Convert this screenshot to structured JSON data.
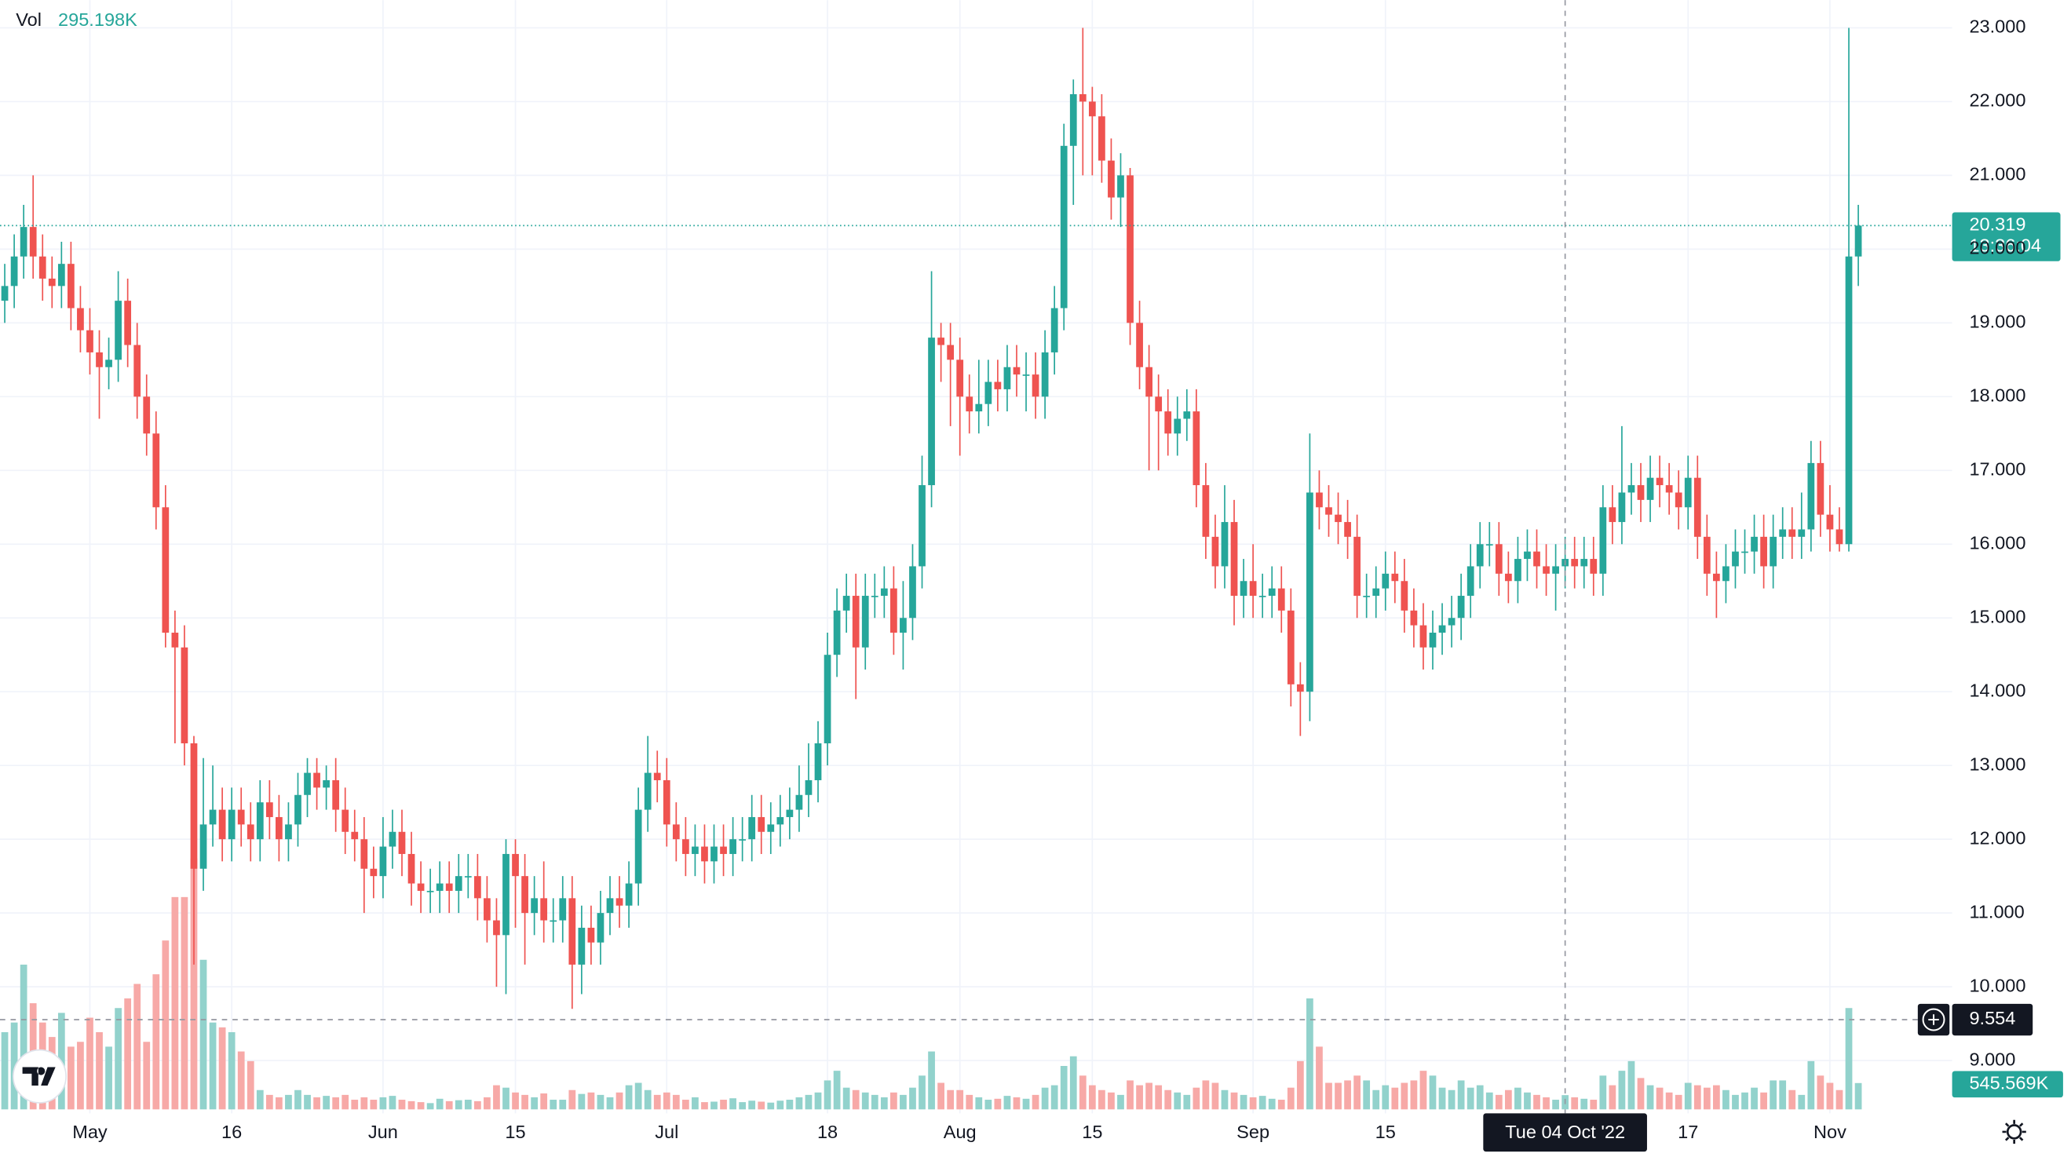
{
  "chart_data": {
    "type": "candlestick",
    "up_color": "#26a69a",
    "down_color": "#ef5350",
    "volume_up_color": "#92d2cc",
    "volume_down_color": "#f7a9a7",
    "grid": true,
    "volume_name": "Vol",
    "x": [
      "2022-04-22",
      "2022-04-23",
      "2022-04-24",
      "2022-04-25",
      "2022-04-26",
      "2022-04-27",
      "2022-04-28",
      "2022-04-29",
      "2022-04-30",
      "2022-05-01",
      "2022-05-02",
      "2022-05-03",
      "2022-05-04",
      "2022-05-05",
      "2022-05-06",
      "2022-05-07",
      "2022-05-08",
      "2022-05-09",
      "2022-05-10",
      "2022-05-11",
      "2022-05-12",
      "2022-05-13",
      "2022-05-14",
      "2022-05-15",
      "2022-05-16",
      "2022-05-17",
      "2022-05-18",
      "2022-05-19",
      "2022-05-20",
      "2022-05-21",
      "2022-05-22",
      "2022-05-23",
      "2022-05-24",
      "2022-05-25",
      "2022-05-26",
      "2022-05-27",
      "2022-05-28",
      "2022-05-29",
      "2022-05-30",
      "2022-05-31",
      "2022-06-01",
      "2022-06-02",
      "2022-06-03",
      "2022-06-04",
      "2022-06-05",
      "2022-06-06",
      "2022-06-07",
      "2022-06-08",
      "2022-06-09",
      "2022-06-10",
      "2022-06-11",
      "2022-06-12",
      "2022-06-13",
      "2022-06-14",
      "2022-06-15",
      "2022-06-16",
      "2022-06-17",
      "2022-06-18",
      "2022-06-19",
      "2022-06-20",
      "2022-06-21",
      "2022-06-22",
      "2022-06-23",
      "2022-06-24",
      "2022-06-25",
      "2022-06-26",
      "2022-06-27",
      "2022-06-28",
      "2022-06-29",
      "2022-06-30",
      "2022-07-01",
      "2022-07-02",
      "2022-07-03",
      "2022-07-04",
      "2022-07-05",
      "2022-07-06",
      "2022-07-07",
      "2022-07-08",
      "2022-07-09",
      "2022-07-10",
      "2022-07-11",
      "2022-07-12",
      "2022-07-13",
      "2022-07-14",
      "2022-07-15",
      "2022-07-16",
      "2022-07-17",
      "2022-07-18",
      "2022-07-19",
      "2022-07-20",
      "2022-07-21",
      "2022-07-22",
      "2022-07-23",
      "2022-07-24",
      "2022-07-25",
      "2022-07-26",
      "2022-07-27",
      "2022-07-28",
      "2022-07-29",
      "2022-07-30",
      "2022-07-31",
      "2022-08-01",
      "2022-08-02",
      "2022-08-03",
      "2022-08-04",
      "2022-08-05",
      "2022-08-06",
      "2022-08-07",
      "2022-08-08",
      "2022-08-09",
      "2022-08-10",
      "2022-08-11",
      "2022-08-12",
      "2022-08-13",
      "2022-08-14",
      "2022-08-15",
      "2022-08-16",
      "2022-08-17",
      "2022-08-18",
      "2022-08-19",
      "2022-08-20",
      "2022-08-21",
      "2022-08-22",
      "2022-08-23",
      "2022-08-24",
      "2022-08-25",
      "2022-08-26",
      "2022-08-27",
      "2022-08-28",
      "2022-08-29",
      "2022-08-30",
      "2022-08-31",
      "2022-09-01",
      "2022-09-02",
      "2022-09-03",
      "2022-09-04",
      "2022-09-05",
      "2022-09-06",
      "2022-09-07",
      "2022-09-08",
      "2022-09-09",
      "2022-09-10",
      "2022-09-11",
      "2022-09-12",
      "2022-09-13",
      "2022-09-14",
      "2022-09-15",
      "2022-09-16",
      "2022-09-17",
      "2022-09-18",
      "2022-09-19",
      "2022-09-20",
      "2022-09-21",
      "2022-09-22",
      "2022-09-23",
      "2022-09-24",
      "2022-09-25",
      "2022-09-26",
      "2022-09-27",
      "2022-09-28",
      "2022-09-29",
      "2022-09-30",
      "2022-10-01",
      "2022-10-02",
      "2022-10-03",
      "2022-10-04",
      "2022-10-05",
      "2022-10-06",
      "2022-10-07",
      "2022-10-08",
      "2022-10-09",
      "2022-10-10",
      "2022-10-11",
      "2022-10-12",
      "2022-10-13",
      "2022-10-14",
      "2022-10-15",
      "2022-10-16",
      "2022-10-17",
      "2022-10-18",
      "2022-10-19",
      "2022-10-20",
      "2022-10-21",
      "2022-10-22",
      "2022-10-23",
      "2022-10-24",
      "2022-10-25",
      "2022-10-26",
      "2022-10-27",
      "2022-10-28",
      "2022-10-29",
      "2022-10-30",
      "2022-10-31",
      "2022-11-01",
      "2022-11-02",
      "2022-11-03",
      "2022-11-04"
    ],
    "open": [
      19.3,
      19.5,
      19.9,
      20.3,
      19.9,
      19.6,
      19.5,
      19.8,
      19.2,
      18.9,
      18.6,
      18.4,
      18.5,
      19.3,
      18.7,
      18.0,
      17.5,
      16.5,
      14.8,
      14.6,
      13.3,
      11.6,
      12.2,
      12.4,
      12.0,
      12.4,
      12.2,
      12.0,
      12.5,
      12.3,
      12.0,
      12.2,
      12.6,
      12.9,
      12.7,
      12.8,
      12.4,
      12.1,
      12.0,
      11.6,
      11.5,
      11.9,
      12.1,
      11.8,
      11.4,
      11.3,
      11.3,
      11.4,
      11.3,
      11.5,
      11.5,
      11.2,
      10.9,
      10.7,
      11.8,
      11.5,
      11.0,
      11.2,
      10.9,
      10.9,
      11.2,
      10.3,
      10.8,
      10.6,
      11.0,
      11.2,
      11.1,
      11.4,
      12.4,
      12.9,
      12.8,
      12.2,
      12.0,
      11.8,
      11.9,
      11.7,
      11.9,
      11.8,
      12.0,
      12.0,
      12.3,
      12.1,
      12.2,
      12.3,
      12.4,
      12.6,
      12.8,
      13.3,
      14.5,
      15.1,
      15.3,
      14.6,
      15.3,
      15.3,
      15.4,
      14.8,
      15.0,
      15.7,
      16.8,
      18.8,
      18.7,
      18.5,
      18.0,
      17.8,
      17.9,
      18.2,
      18.1,
      18.4,
      18.3,
      18.3,
      18.0,
      18.6,
      19.2,
      21.4,
      22.1,
      22.0,
      21.8,
      21.2,
      20.7,
      21.0,
      19.0,
      18.4,
      18.0,
      17.8,
      17.5,
      17.7,
      17.8,
      16.8,
      16.1,
      15.7,
      16.3,
      15.3,
      15.5,
      15.3,
      15.3,
      15.4,
      15.1,
      14.1,
      14.0,
      16.7,
      16.5,
      16.4,
      16.3,
      16.1,
      15.3,
      15.3,
      15.4,
      15.6,
      15.5,
      15.1,
      14.9,
      14.6,
      14.8,
      14.9,
      15.0,
      15.3,
      15.7,
      16.0,
      16.0,
      15.6,
      15.5,
      15.8,
      15.9,
      15.7,
      15.6,
      15.7,
      15.8,
      15.7,
      15.8,
      15.6,
      16.5,
      16.3,
      16.7,
      16.8,
      16.6,
      16.9,
      16.8,
      16.7,
      16.5,
      16.9,
      16.1,
      15.6,
      15.5,
      15.7,
      15.9,
      15.9,
      16.1,
      15.7,
      16.1,
      16.2,
      16.1,
      16.2,
      17.1,
      16.4,
      16.2,
      16.0,
      19.9
    ],
    "high": [
      19.8,
      20.2,
      20.6,
      21.0,
      20.2,
      19.9,
      20.1,
      20.1,
      19.5,
      19.2,
      18.9,
      18.8,
      19.7,
      19.6,
      19.0,
      18.3,
      17.8,
      16.8,
      15.1,
      14.9,
      13.4,
      13.1,
      13.0,
      12.7,
      12.7,
      12.7,
      12.5,
      12.8,
      12.8,
      12.6,
      12.5,
      12.9,
      13.1,
      13.1,
      13.0,
      13.1,
      12.7,
      12.4,
      12.3,
      11.9,
      12.3,
      12.4,
      12.4,
      12.1,
      11.7,
      11.6,
      11.7,
      11.7,
      11.8,
      11.8,
      11.8,
      11.5,
      11.2,
      12.0,
      12.0,
      11.8,
      11.5,
      11.7,
      11.2,
      11.5,
      11.5,
      11.1,
      11.1,
      11.3,
      11.5,
      11.5,
      11.7,
      12.7,
      13.4,
      13.2,
      13.1,
      12.5,
      12.3,
      12.2,
      12.2,
      12.2,
      12.2,
      12.3,
      12.3,
      12.6,
      12.6,
      12.5,
      12.6,
      12.7,
      13.0,
      13.3,
      13.6,
      14.8,
      15.4,
      15.6,
      15.6,
      15.6,
      15.6,
      15.7,
      15.7,
      15.5,
      16.0,
      17.2,
      19.7,
      19.0,
      19.0,
      18.8,
      18.3,
      18.5,
      18.5,
      18.5,
      18.7,
      18.7,
      18.6,
      18.6,
      18.9,
      19.5,
      21.7,
      22.3,
      23.0,
      22.2,
      22.1,
      21.5,
      21.3,
      21.1,
      19.3,
      18.7,
      18.3,
      18.1,
      18.0,
      18.1,
      18.1,
      17.1,
      16.4,
      16.8,
      16.6,
      15.8,
      16.0,
      15.6,
      15.7,
      15.7,
      15.4,
      14.4,
      17.5,
      17.0,
      16.8,
      16.7,
      16.6,
      16.4,
      15.6,
      15.7,
      15.9,
      15.9,
      15.8,
      15.4,
      15.2,
      15.1,
      15.2,
      15.3,
      15.6,
      16.0,
      16.3,
      16.3,
      16.3,
      15.9,
      16.1,
      16.2,
      16.2,
      16.0,
      16.0,
      16.1,
      16.1,
      16.1,
      16.1,
      16.8,
      16.8,
      17.6,
      17.1,
      17.1,
      17.2,
      17.2,
      17.1,
      17.0,
      17.2,
      17.2,
      16.4,
      15.9,
      16.0,
      16.2,
      16.2,
      16.4,
      16.4,
      16.4,
      16.5,
      16.5,
      16.7,
      17.4,
      17.4,
      16.8,
      16.5,
      23.0,
      20.6
    ],
    "low": [
      19.0,
      19.2,
      19.6,
      19.6,
      19.3,
      19.2,
      19.2,
      18.9,
      18.6,
      18.3,
      17.7,
      18.1,
      18.2,
      18.4,
      17.7,
      17.2,
      16.2,
      14.6,
      13.3,
      13.0,
      10.3,
      11.3,
      11.9,
      11.7,
      11.7,
      11.9,
      11.7,
      11.7,
      12.0,
      11.7,
      11.7,
      11.9,
      12.3,
      12.4,
      12.4,
      12.1,
      11.8,
      11.7,
      11.0,
      11.2,
      11.2,
      11.6,
      11.5,
      11.1,
      11.0,
      11.0,
      11.0,
      11.0,
      11.0,
      11.2,
      10.9,
      10.6,
      10.0,
      9.9,
      10.8,
      10.3,
      10.7,
      10.6,
      10.6,
      10.6,
      9.7,
      9.9,
      10.3,
      10.3,
      10.7,
      10.8,
      10.8,
      11.1,
      12.1,
      12.5,
      11.9,
      11.7,
      11.5,
      11.5,
      11.4,
      11.4,
      11.5,
      11.5,
      11.7,
      11.7,
      11.8,
      11.8,
      11.9,
      12.0,
      12.1,
      12.3,
      12.5,
      13.0,
      14.2,
      14.8,
      13.9,
      14.3,
      15.0,
      15.0,
      14.5,
      14.3,
      14.7,
      15.4,
      16.5,
      18.2,
      17.6,
      17.2,
      17.5,
      17.5,
      17.6,
      17.8,
      17.8,
      18.0,
      17.8,
      17.7,
      17.7,
      18.3,
      18.9,
      20.6,
      21.0,
      21.0,
      20.9,
      20.4,
      20.3,
      18.7,
      18.1,
      17.0,
      17.0,
      17.2,
      17.2,
      17.4,
      16.5,
      15.8,
      15.4,
      15.4,
      14.9,
      15.0,
      15.0,
      15.0,
      15.0,
      14.8,
      13.8,
      13.4,
      13.6,
      16.2,
      16.1,
      16.0,
      15.8,
      15.0,
      15.0,
      15.0,
      15.1,
      15.2,
      14.8,
      14.6,
      14.3,
      14.3,
      14.5,
      14.6,
      14.7,
      15.0,
      15.4,
      15.7,
      15.3,
      15.2,
      15.2,
      15.5,
      15.4,
      15.3,
      15.1,
      15.4,
      15.4,
      15.4,
      15.3,
      15.3,
      16.0,
      16.0,
      16.4,
      16.3,
      16.3,
      16.5,
      16.4,
      16.2,
      16.2,
      15.8,
      15.3,
      15.0,
      15.2,
      15.4,
      15.6,
      15.6,
      15.4,
      15.4,
      15.8,
      15.8,
      15.8,
      15.9,
      16.1,
      15.9,
      15.9,
      15.9,
      19.5
    ],
    "close": [
      19.5,
      19.9,
      20.3,
      19.9,
      19.6,
      19.5,
      19.8,
      19.2,
      18.9,
      18.6,
      18.4,
      18.5,
      19.3,
      18.7,
      18.0,
      17.5,
      16.5,
      14.8,
      14.6,
      13.3,
      11.6,
      12.2,
      12.4,
      12.0,
      12.4,
      12.2,
      12.0,
      12.5,
      12.3,
      12.0,
      12.2,
      12.6,
      12.9,
      12.7,
      12.8,
      12.4,
      12.1,
      12.0,
      11.6,
      11.5,
      11.9,
      12.1,
      11.8,
      11.4,
      11.3,
      11.3,
      11.4,
      11.3,
      11.5,
      11.5,
      11.2,
      10.9,
      10.7,
      11.8,
      11.5,
      11.0,
      11.2,
      10.9,
      10.9,
      11.2,
      10.3,
      10.8,
      10.6,
      11.0,
      11.2,
      11.1,
      11.4,
      12.4,
      12.9,
      12.8,
      12.2,
      12.0,
      11.8,
      11.9,
      11.7,
      11.9,
      11.8,
      12.0,
      12.0,
      12.3,
      12.1,
      12.2,
      12.3,
      12.4,
      12.6,
      12.8,
      13.3,
      14.5,
      15.1,
      15.3,
      14.6,
      15.3,
      15.3,
      15.4,
      14.8,
      15.0,
      15.7,
      16.8,
      18.8,
      18.7,
      18.5,
      18.0,
      17.8,
      17.9,
      18.2,
      18.1,
      18.4,
      18.3,
      18.3,
      18.0,
      18.6,
      19.2,
      21.4,
      22.1,
      22.0,
      21.8,
      21.2,
      20.7,
      21.0,
      19.0,
      18.4,
      18.0,
      17.8,
      17.5,
      17.7,
      17.8,
      16.8,
      16.1,
      15.7,
      16.3,
      15.3,
      15.5,
      15.3,
      15.3,
      15.4,
      15.1,
      14.1,
      14.0,
      16.7,
      16.5,
      16.4,
      16.3,
      16.1,
      15.3,
      15.3,
      15.4,
      15.6,
      15.5,
      15.1,
      14.9,
      14.6,
      14.8,
      14.9,
      15.0,
      15.3,
      15.7,
      16.0,
      16.0,
      15.6,
      15.5,
      15.8,
      15.9,
      15.7,
      15.6,
      15.7,
      15.8,
      15.7,
      15.8,
      15.6,
      16.5,
      16.3,
      16.7,
      16.8,
      16.6,
      16.9,
      16.8,
      16.7,
      16.5,
      16.9,
      16.1,
      15.6,
      15.5,
      15.7,
      15.9,
      15.9,
      16.1,
      15.7,
      16.1,
      16.2,
      16.1,
      16.2,
      17.1,
      16.4,
      16.2,
      16.0,
      19.9,
      20.319
    ],
    "volume": [
      1600000,
      1800000,
      3000000,
      2200000,
      1800000,
      1500000,
      2000000,
      1300000,
      1400000,
      1900000,
      1600000,
      1300000,
      2100000,
      2300000,
      2600000,
      1400000,
      2800000,
      3500000,
      4400000,
      4400000,
      5200000,
      3100000,
      1800000,
      1700000,
      1600000,
      1200000,
      1000000,
      400000,
      300000,
      250000,
      300000,
      400000,
      300000,
      250000,
      280000,
      250000,
      300000,
      200000,
      250000,
      200000,
      250000,
      280000,
      200000,
      170000,
      150000,
      130000,
      220000,
      170000,
      190000,
      200000,
      170000,
      250000,
      500000,
      450000,
      350000,
      300000,
      250000,
      330000,
      200000,
      200000,
      400000,
      320000,
      350000,
      300000,
      250000,
      350000,
      500000,
      550000,
      400000,
      300000,
      350000,
      300000,
      200000,
      250000,
      150000,
      160000,
      200000,
      230000,
      150000,
      180000,
      160000,
      140000,
      180000,
      200000,
      250000,
      300000,
      350000,
      600000,
      800000,
      450000,
      400000,
      350000,
      300000,
      250000,
      350000,
      300000,
      450000,
      700000,
      1200000,
      550000,
      400000,
      400000,
      300000,
      250000,
      200000,
      220000,
      280000,
      250000,
      220000,
      300000,
      450000,
      500000,
      900000,
      1100000,
      700000,
      500000,
      400000,
      350000,
      300000,
      600000,
      500000,
      550000,
      500000,
      400000,
      350000,
      300000,
      450000,
      600000,
      550000,
      400000,
      350000,
      300000,
      250000,
      280000,
      220000,
      200000,
      450000,
      1000000,
      2300000,
      1300000,
      550000,
      550000,
      600000,
      700000,
      600000,
      400000,
      500000,
      450000,
      550000,
      600000,
      800000,
      700000,
      450000,
      400000,
      600000,
      450000,
      500000,
      350000,
      300000,
      400000,
      450000,
      350000,
      300000,
      250000,
      200000,
      295198,
      250000,
      220000,
      200000,
      700000,
      500000,
      800000,
      1000000,
      650000,
      500000,
      450000,
      350000,
      300000,
      550000,
      500000,
      450000,
      500000,
      400000,
      300000,
      350000,
      450000,
      350000,
      600000,
      600000,
      400000,
      300000,
      1000000,
      700000,
      550000,
      400000,
      2100000,
      545569
    ],
    "ylim": [
      23.3,
      7.6
    ],
    "yticks": [
      {
        "value": 9,
        "label": "9.000"
      },
      {
        "value": 10,
        "label": "10.000"
      },
      {
        "value": 11,
        "label": "11.000"
      },
      {
        "value": 12,
        "label": "12.000"
      },
      {
        "value": 13,
        "label": "13.000"
      },
      {
        "value": 14,
        "label": "14.000"
      },
      {
        "value": 15,
        "label": "15.000"
      },
      {
        "value": 16,
        "label": "16.000"
      },
      {
        "value": 17,
        "label": "17.000"
      },
      {
        "value": 18,
        "label": "18.000"
      },
      {
        "value": 19,
        "label": "19.000"
      },
      {
        "value": 20,
        "label": "20.000"
      },
      {
        "value": 21,
        "label": "21.000"
      },
      {
        "value": 22,
        "label": "22.000"
      },
      {
        "value": 23,
        "label": "23.000"
      }
    ],
    "xticks": [
      {
        "value": "2022-05-01",
        "label": "May"
      },
      {
        "value": "2022-05-16",
        "label": "16"
      },
      {
        "value": "2022-06-01",
        "label": "Jun"
      },
      {
        "value": "2022-06-15",
        "label": "15"
      },
      {
        "value": "2022-07-01",
        "label": "Jul"
      },
      {
        "value": "2022-07-18",
        "label": "18"
      },
      {
        "value": "2022-08-01",
        "label": "Aug"
      },
      {
        "value": "2022-08-15",
        "label": "15"
      },
      {
        "value": "2022-09-01",
        "label": "Sep"
      },
      {
        "value": "2022-09-15",
        "label": "15"
      },
      {
        "value": "2022-10-17",
        "label": "17"
      },
      {
        "value": "2022-11-01",
        "label": "Nov"
      }
    ],
    "crosshair": {
      "x": "2022-10-04",
      "x_label": "Tue 04 Oct '22",
      "y": 9.554,
      "volume": 295198,
      "volume_label": "295.198K"
    },
    "last": {
      "price": 20.319,
      "countdown": "13:36:04",
      "volume": 545569,
      "volume_label": "545.569K"
    }
  }
}
